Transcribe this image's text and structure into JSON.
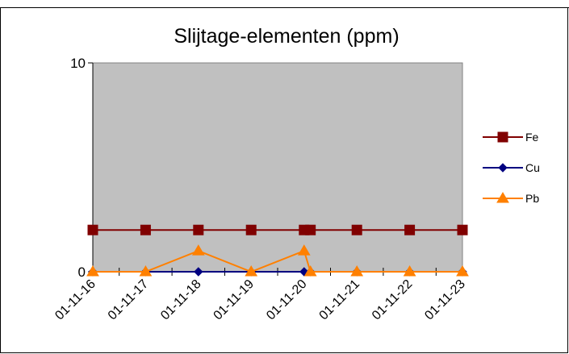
{
  "chart_data": {
    "type": "line",
    "title": "Slijtage-elementen (ppm)",
    "xlabel": "",
    "ylabel": "",
    "ylim": [
      0,
      10
    ],
    "y_ticks": [
      "0",
      "10"
    ],
    "x_ticks": [
      "01-11-16",
      "01-11-17",
      "01-11-18",
      "01-11-19",
      "01-11-20",
      "01-11-21",
      "01-11-22",
      "01-11-23"
    ],
    "x_range": [
      "2016-11-01",
      "2023-11-01"
    ],
    "plot_background": "#c0c0c0",
    "grid": false,
    "legend_position": "right",
    "series": [
      {
        "name": "Fe",
        "color": "#800000",
        "marker": "square",
        "points": [
          {
            "x": "2016-11-01",
            "y": 2
          },
          {
            "x": "2017-11-01",
            "y": 2
          },
          {
            "x": "2018-11-01",
            "y": 2
          },
          {
            "x": "2019-11-01",
            "y": 2
          },
          {
            "x": "2020-11-01",
            "y": 2
          },
          {
            "x": "2020-12-15",
            "y": 2
          },
          {
            "x": "2021-11-01",
            "y": 2
          },
          {
            "x": "2022-11-01",
            "y": 2
          },
          {
            "x": "2023-11-01",
            "y": 2
          }
        ]
      },
      {
        "name": "Cu",
        "color": "#000080",
        "marker": "diamond",
        "points": [
          {
            "x": "2016-11-01",
            "y": 0
          },
          {
            "x": "2017-11-01",
            "y": 0
          },
          {
            "x": "2018-11-01",
            "y": 0
          },
          {
            "x": "2019-11-01",
            "y": 0
          },
          {
            "x": "2020-11-01",
            "y": 0
          },
          {
            "x": "2020-12-15",
            "y": 0
          },
          {
            "x": "2021-11-01",
            "y": 0
          },
          {
            "x": "2022-11-01",
            "y": 0
          },
          {
            "x": "2023-11-01",
            "y": 0
          }
        ]
      },
      {
        "name": "Pb",
        "color": "#ff8000",
        "marker": "triangle",
        "points": [
          {
            "x": "2016-11-01",
            "y": 0
          },
          {
            "x": "2017-11-01",
            "y": 0
          },
          {
            "x": "2018-11-01",
            "y": 1
          },
          {
            "x": "2019-11-01",
            "y": 0
          },
          {
            "x": "2020-11-01",
            "y": 1
          },
          {
            "x": "2020-12-15",
            "y": 0
          },
          {
            "x": "2021-11-01",
            "y": 0
          },
          {
            "x": "2022-11-01",
            "y": 0
          },
          {
            "x": "2023-11-01",
            "y": 0
          }
        ]
      }
    ]
  }
}
